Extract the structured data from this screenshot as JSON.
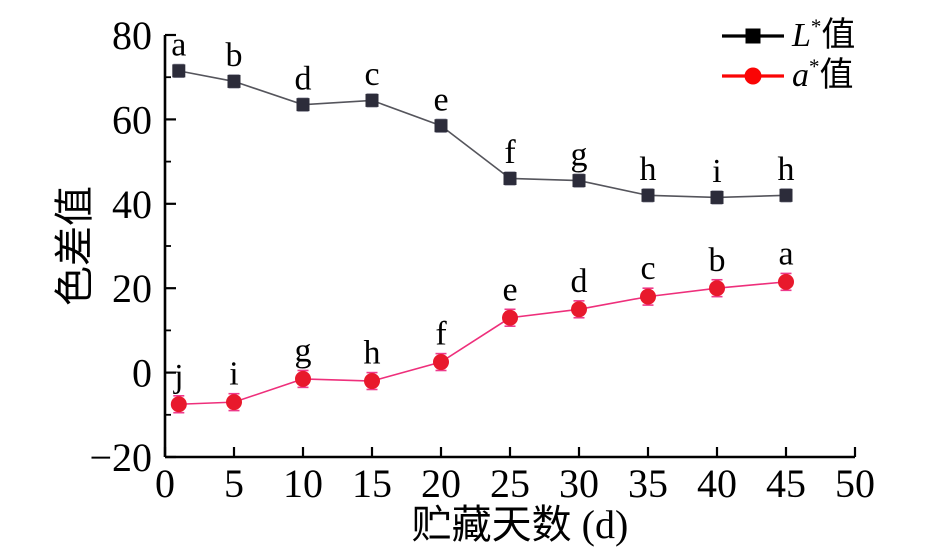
{
  "figure": {
    "background": "#ffffff",
    "axis_color": "#000000"
  },
  "chart_data": {
    "type": "line",
    "title": "",
    "xlabel": "贮藏天数 (d)",
    "ylabel": "色差值",
    "xlim": [
      0,
      50
    ],
    "ylim": [
      -20,
      80
    ],
    "grid": false,
    "legend_position": "top-right",
    "x": [
      1,
      5,
      10,
      15,
      20,
      25,
      30,
      35,
      40,
      45
    ],
    "xticks": {
      "values": [
        0,
        5,
        10,
        15,
        20,
        25,
        30,
        35,
        40,
        45,
        50
      ],
      "labels": [
        "0",
        "5",
        "10",
        "15",
        "20",
        "25",
        "30",
        "35",
        "40",
        "45",
        "50"
      ]
    },
    "yticks": {
      "major_values": [
        -20,
        0,
        20,
        40,
        60,
        80
      ],
      "major_labels": [
        "−20",
        "0",
        "20",
        "40",
        "60",
        "80"
      ],
      "minor_values": [
        -10,
        10,
        30,
        50,
        70
      ]
    },
    "series": [
      {
        "id": "lstar",
        "display_label": "L*值",
        "label_letter": "L",
        "label_sup": "*",
        "label_suffix": "值",
        "marker": "square",
        "marker_color": "#2c2c3a",
        "line_color": "#55555c",
        "err_color": "#9494a2",
        "legend_color": "#000000",
        "err": 1.5,
        "values": [
          71.5,
          69,
          63.5,
          64.5,
          58.5,
          46,
          45.5,
          42,
          41.5,
          42
        ],
        "letters": [
          "a",
          "b",
          "d",
          "c",
          "e",
          "f",
          "g",
          "h",
          "i",
          "h"
        ]
      },
      {
        "id": "astar",
        "display_label": "a*值",
        "label_letter": "a",
        "label_sup": "*",
        "label_suffix": "值",
        "marker": "circle",
        "marker_color": "#e8192c",
        "line_color": "#ee2f7b",
        "err_color": "#ee3a8c",
        "legend_color": "#fa0505",
        "err": 2,
        "values": [
          -7.5,
          -7,
          -1.5,
          -2,
          2.5,
          13,
          15,
          18,
          20,
          21.5
        ],
        "letters": [
          "j",
          "i",
          "g",
          "h",
          "f",
          "e",
          "d",
          "c",
          "b",
          "a"
        ]
      }
    ]
  }
}
